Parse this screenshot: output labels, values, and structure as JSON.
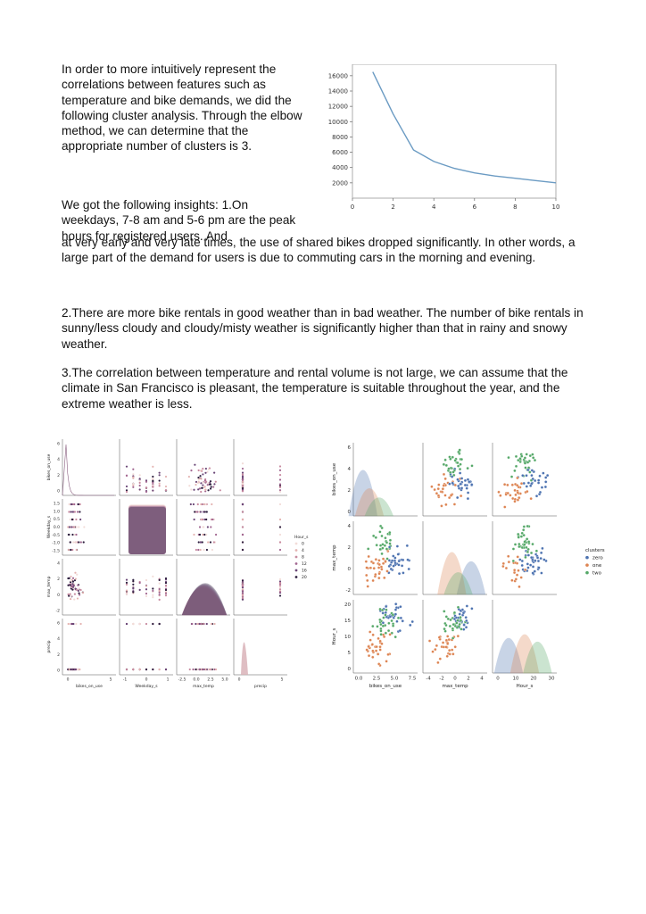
{
  "paragraphs": {
    "intro": "In order to more intuitively represent the correlations between features such as temperature and bike demands, we did the following cluster analysis. Through the elbow method, we can determine that the appropriate number of clusters is 3.",
    "insights_lead": "We got the following insights: 1.On weekdays, 7-8 am and 5-6 pm are the peak hours for registered users. And",
    "insight1_cont": "at very early and very late times, the use of shared bikes dropped significantly. In other words, a large part of the demand for users is due to commuting cars in the morning and evening.",
    "insight2": "2.There are more bike rentals in good weather than in bad weather. The number of bike rentals in sunny/less cloudy and cloudy/misty weather is significantly higher than that in rainy and snowy weather.",
    "insight3": "3.The correlation between temperature and rental volume is not large, we can assume that the climate in San Francisco is pleasant, the temperature is suitable throughout the year, and the extreme weather is less."
  },
  "chart_data": [
    {
      "type": "line",
      "title": "",
      "xlabel": "",
      "ylabel": "",
      "x": [
        1,
        2,
        3,
        4,
        5,
        6,
        7,
        8,
        9,
        10
      ],
      "series": [
        {
          "values": [
            16500,
            11000,
            6300,
            4800,
            3900,
            3300,
            2900,
            2600,
            2300,
            2000
          ]
        }
      ],
      "xlim": [
        0,
        10
      ],
      "ylim": [
        0,
        17500
      ],
      "xticks": [
        "0",
        "2",
        "4",
        "6",
        "8",
        "10"
      ],
      "yticks": [
        "2000",
        "4000",
        "6000",
        "8000",
        "10000",
        "12000",
        "14000",
        "16000"
      ],
      "color": "#6b9bc3",
      "grid": false
    },
    {
      "type": "scatter",
      "variables": [
        "bikes_on_use",
        "Weekday_s",
        "max_temp",
        "precip"
      ],
      "legend_title": "Hour_s",
      "legend_entries": [
        "0",
        "4",
        "8",
        "12",
        "16",
        "20"
      ],
      "legend_colors": [
        "#f2dcd8",
        "#e4b3b1",
        "#c88ba0",
        "#a26791",
        "#6b4777",
        "#2d1e3e"
      ],
      "x_ticks": {
        "bikes_on_use": [
          "0",
          "5"
        ],
        "Weekday_s": [
          "-1",
          "0",
          "1"
        ],
        "max_temp": [
          "-2.5",
          "0.0",
          "2.5",
          "5.0"
        ],
        "precip": [
          "0",
          "5"
        ]
      },
      "y_ticks": {
        "bikes_on_use": [
          "0",
          "2",
          "4",
          "6"
        ],
        "Weekday_s": [
          "-1.5",
          "-1.0",
          "-0.5",
          "0.0",
          "0.5",
          "1.0",
          "1.5"
        ],
        "max_temp": [
          "-2",
          "0",
          "2",
          "4"
        ],
        "precip": [
          "0",
          "2",
          "4",
          "6"
        ]
      },
      "legend_placement": "right"
    },
    {
      "type": "scatter",
      "variables": [
        "bikes_on_use",
        "max_temp",
        "Hour_s"
      ],
      "legend_title": "clusters",
      "legend_entries": [
        "zero",
        "one",
        "two"
      ],
      "legend_colors": [
        "#4c72b0",
        "#dd8452",
        "#55a868"
      ],
      "x_ticks": {
        "bikes_on_use": [
          "0.0",
          "2.5",
          "5.0",
          "7.5"
        ],
        "max_temp": [
          "-4",
          "-2",
          "0",
          "2",
          "4"
        ],
        "Hour_s": [
          "0",
          "10",
          "20",
          "30"
        ]
      },
      "y_ticks": {
        "bikes_on_use": [
          "0",
          "2",
          "4",
          "6"
        ],
        "max_temp": [
          "-2",
          "0",
          "2",
          "4"
        ],
        "Hour_s": [
          "0",
          "5",
          "10",
          "15",
          "20"
        ]
      },
      "legend_placement": "right"
    }
  ]
}
